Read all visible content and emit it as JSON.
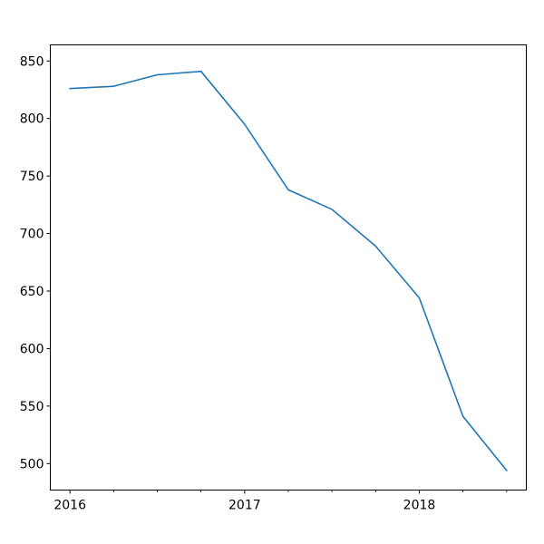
{
  "chart_data": {
    "type": "line",
    "title": "",
    "xlabel": "",
    "ylabel": "",
    "x": [
      "2016-01",
      "2016-04",
      "2016-07",
      "2016-10",
      "2017-01",
      "2017-04",
      "2017-07",
      "2017-10",
      "2018-01",
      "2018-04",
      "2018-07"
    ],
    "series": [
      {
        "values": [
          826,
          828,
          838,
          841,
          795,
          738,
          721,
          689,
          644,
          541,
          494
        ]
      }
    ],
    "xlim": [
      "2016-01",
      "2018-07"
    ],
    "ylim": [
      477,
      864
    ],
    "x_major_ticks": [
      "2016-01",
      "2017-01",
      "2018-01"
    ],
    "x_major_tick_labels": [
      "2016",
      "2017",
      "2018"
    ],
    "x_minor_ticks": [
      "2016-04",
      "2016-07",
      "2016-10",
      "2017-04",
      "2017-07",
      "2017-10",
      "2018-04",
      "2018-07"
    ],
    "y_ticks": [
      500,
      550,
      600,
      650,
      700,
      750,
      800,
      850
    ],
    "y_tick_labels": [
      "500",
      "550",
      "600",
      "650",
      "700",
      "750",
      "800",
      "850"
    ],
    "grid": false,
    "legend": false,
    "line_color": "#1f77b4"
  }
}
